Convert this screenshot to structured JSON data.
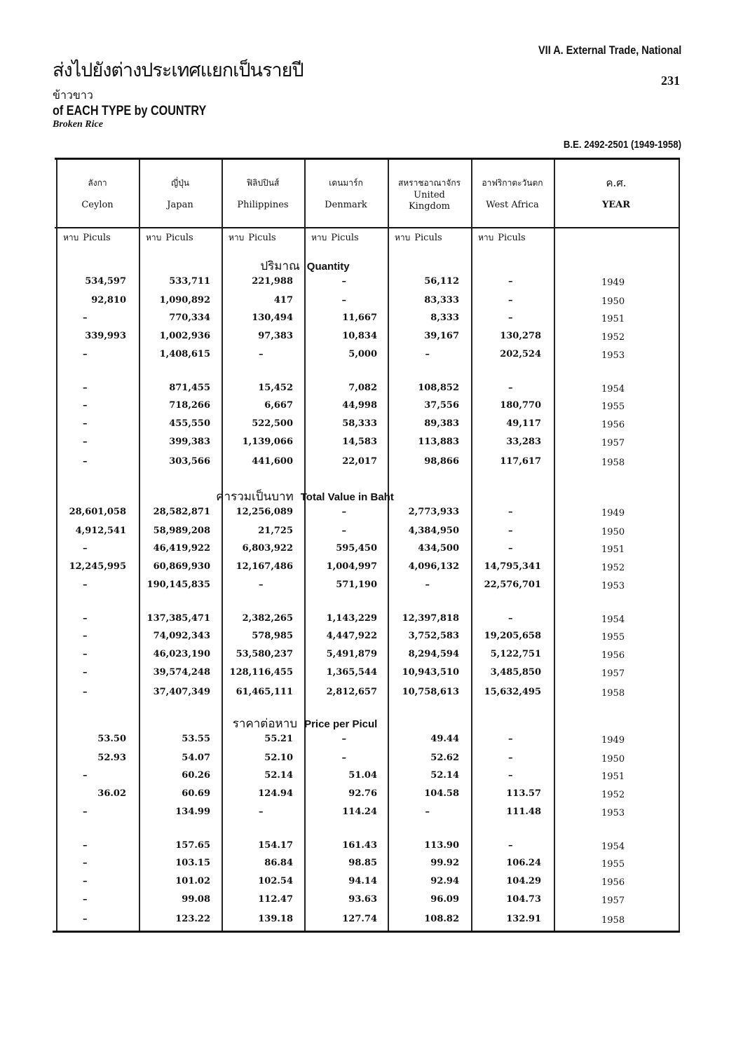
{
  "header": {
    "thai_title": "ส่งไปยังต่างประเทศแยกเป็นรายปี",
    "thai_subtitle": "ข้าวขาว",
    "title": "of EACH TYPE by COUNTRY",
    "subtitle": "Broken Rice",
    "section": "VII A. External Trade, National",
    "page_number": "231",
    "period": "B.E. 2492-2501 (1949-1958)"
  },
  "columns": [
    {
      "thai": "ลังกา",
      "en": "Ceylon"
    },
    {
      "thai": "ญี่ปุ่น",
      "en": "Japan"
    },
    {
      "thai": "ฟิลิปปินส์",
      "en": "Philippines"
    },
    {
      "thai": "เดนมาร์ก",
      "en": "Denmark"
    },
    {
      "thai": "สหราชอาณาจักร",
      "en": "United Kingdom"
    },
    {
      "thai": "อาฟริกาตะวันตก",
      "en": "West Africa"
    },
    {
      "thai": "ค.ศ.",
      "en": "YEAR"
    }
  ],
  "unit": {
    "thai": "หาบ",
    "en": "Piculs"
  },
  "sections": [
    {
      "thai": "ปริมาณ",
      "en": "Quantity",
      "rows": [
        {
          "year": "1949",
          "values": [
            "534,597",
            "533,711",
            "221,988",
            "–",
            "56,112",
            "–"
          ]
        },
        {
          "year": "1950",
          "values": [
            "92,810",
            "1,090,892",
            "417",
            "–",
            "83,333",
            "–"
          ]
        },
        {
          "year": "1951",
          "values": [
            "–",
            "770,334",
            "130,494",
            "11,667",
            "8,333",
            "–"
          ]
        },
        {
          "year": "1952",
          "values": [
            "339,993",
            "1,002,936",
            "97,383",
            "10,834",
            "39,167",
            "130,278"
          ]
        },
        {
          "year": "1953",
          "values": [
            "–",
            "1,408,615",
            "–",
            "5,000",
            "–",
            "202,524"
          ]
        },
        {
          "year": "1954",
          "values": [
            "–",
            "871,455",
            "15,452",
            "7,082",
            "108,852",
            "–"
          ]
        },
        {
          "year": "1955",
          "values": [
            "–",
            "718,266",
            "6,667",
            "44,998",
            "37,556",
            "180,770"
          ]
        },
        {
          "year": "1956",
          "values": [
            "–",
            "455,550",
            "522,500",
            "58,333",
            "89,383",
            "49,117"
          ]
        },
        {
          "year": "1957",
          "values": [
            "–",
            "399,383",
            "1,139,066",
            "14,583",
            "113,883",
            "33,283"
          ]
        },
        {
          "year": "1958",
          "values": [
            "–",
            "303,566",
            "441,600",
            "22,017",
            "98,866",
            "117,617"
          ]
        }
      ]
    },
    {
      "thai": "ค่ารวมเป็นบาท",
      "en": "Total Value in Baht",
      "rows": [
        {
          "year": "1949",
          "values": [
            "28,601,058",
            "28,582,871",
            "12,256,089",
            "–",
            "2,773,933",
            "–"
          ]
        },
        {
          "year": "1950",
          "values": [
            "4,912,541",
            "58,989,208",
            "21,725",
            "–",
            "4,384,950",
            "–"
          ]
        },
        {
          "year": "1951",
          "values": [
            "–",
            "46,419,922",
            "6,803,922",
            "595,450",
            "434,500",
            "–"
          ]
        },
        {
          "year": "1952",
          "values": [
            "12,245,995",
            "60,869,930",
            "12,167,486",
            "1,004,997",
            "4,096,132",
            "14,795,341"
          ]
        },
        {
          "year": "1953",
          "values": [
            "–",
            "190,145,835",
            "–",
            "571,190",
            "–",
            "22,576,701"
          ]
        },
        {
          "year": "1954",
          "values": [
            "–",
            "137,385,471",
            "2,382,265",
            "1,143,229",
            "12,397,818",
            "–"
          ]
        },
        {
          "year": "1955",
          "values": [
            "–",
            "74,092,343",
            "578,985",
            "4,447,922",
            "3,752,583",
            "19,205,658"
          ]
        },
        {
          "year": "1956",
          "values": [
            "–",
            "46,023,190",
            "53,580,237",
            "5,491,879",
            "8,294,594",
            "5,122,751"
          ]
        },
        {
          "year": "1957",
          "values": [
            "–",
            "39,574,248",
            "128,116,455",
            "1,365,544",
            "10,943,510",
            "3,485,850"
          ]
        },
        {
          "year": "1958",
          "values": [
            "–",
            "37,407,349",
            "61,465,111",
            "2,812,657",
            "10,758,613",
            "15,632,495"
          ]
        }
      ]
    },
    {
      "thai": "ราคาต่อหาบ",
      "en": "Price per Picul",
      "rows": [
        {
          "year": "1949",
          "values": [
            "53.50",
            "53.55",
            "55.21",
            "–",
            "49.44",
            "–"
          ]
        },
        {
          "year": "1950",
          "values": [
            "52.93",
            "54.07",
            "52.10",
            "–",
            "52.62",
            "–"
          ]
        },
        {
          "year": "1951",
          "values": [
            "–",
            "60.26",
            "52.14",
            "51.04",
            "52.14",
            "–"
          ]
        },
        {
          "year": "1952",
          "values": [
            "36.02",
            "60.69",
            "124.94",
            "92.76",
            "104.58",
            "113.57"
          ]
        },
        {
          "year": "1953",
          "values": [
            "–",
            "134.99",
            "–",
            "114.24",
            "–",
            "111.48"
          ]
        },
        {
          "year": "1954",
          "values": [
            "–",
            "157.65",
            "154.17",
            "161.43",
            "113.90",
            "–"
          ]
        },
        {
          "year": "1955",
          "values": [
            "–",
            "103.15",
            "86.84",
            "98.85",
            "99.92",
            "106.24"
          ]
        },
        {
          "year": "1956",
          "values": [
            "–",
            "101.02",
            "102.54",
            "94.14",
            "92.94",
            "104.29"
          ]
        },
        {
          "year": "1957",
          "values": [
            "–",
            "99.08",
            "112.47",
            "93.63",
            "96.09",
            "104.73"
          ]
        },
        {
          "year": "1958",
          "values": [
            "–",
            "123.22",
            "139.18",
            "127.74",
            "108.82",
            "132.91"
          ]
        }
      ]
    }
  ]
}
